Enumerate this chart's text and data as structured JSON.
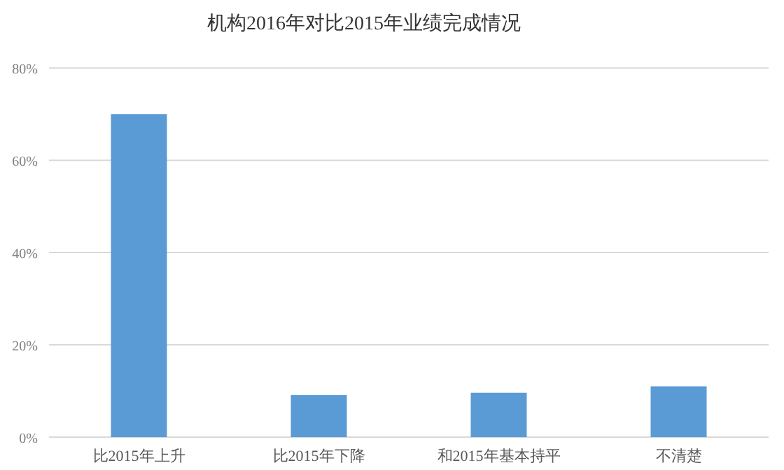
{
  "chart_data": {
    "type": "bar",
    "title": "机构2016年对比2015年业绩完成情况",
    "categories": [
      "比2015年上升",
      "比2015年下降",
      "和2015年基本持平",
      "不清楚"
    ],
    "values": [
      70,
      9.1,
      9.6,
      11.0
    ],
    "color": "#5b9bd5",
    "ylim": [
      0,
      80
    ],
    "yticks": [
      {
        "value": 0,
        "label": "0%"
      },
      {
        "value": 20,
        "label": "20%"
      },
      {
        "value": 40,
        "label": "40%"
      },
      {
        "value": 60,
        "label": "60%"
      },
      {
        "value": 80,
        "label": "80%"
      }
    ],
    "grid": "y"
  }
}
